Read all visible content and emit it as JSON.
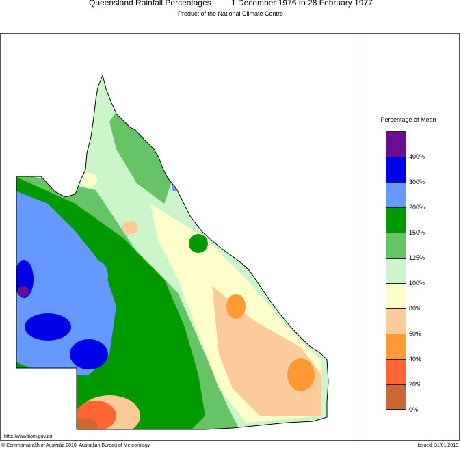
{
  "header": {
    "title": "Queensland Rainfall Percentages",
    "period": "1 December 1976 to 28 February 1977",
    "subtitle": "Product of the National Climate Centre"
  },
  "legend": {
    "title": "Percentage of Mean",
    "classes": [
      {
        "color": "#6a0d8f"
      },
      {
        "color": "#0000e6"
      },
      {
        "color": "#6699ff"
      },
      {
        "color": "#009900"
      },
      {
        "color": "#66c466"
      },
      {
        "color": "#ccf5cc"
      },
      {
        "color": "#ffffcc"
      },
      {
        "color": "#fccb99"
      },
      {
        "color": "#ff9933"
      },
      {
        "color": "#ff6633"
      },
      {
        "color": "#cc6633"
      }
    ],
    "labels": [
      "400%",
      "300%",
      "200%",
      "150%",
      "125%",
      "100%",
      "80%",
      "60%",
      "40%",
      "20%",
      "0%"
    ]
  },
  "footer": {
    "url": "http://www.bom.gov.au",
    "copyright": "© Commonwealth of Australia 2010, Australian Bureau of Meteorology",
    "issued": "Issued: 31/01/2010"
  }
}
